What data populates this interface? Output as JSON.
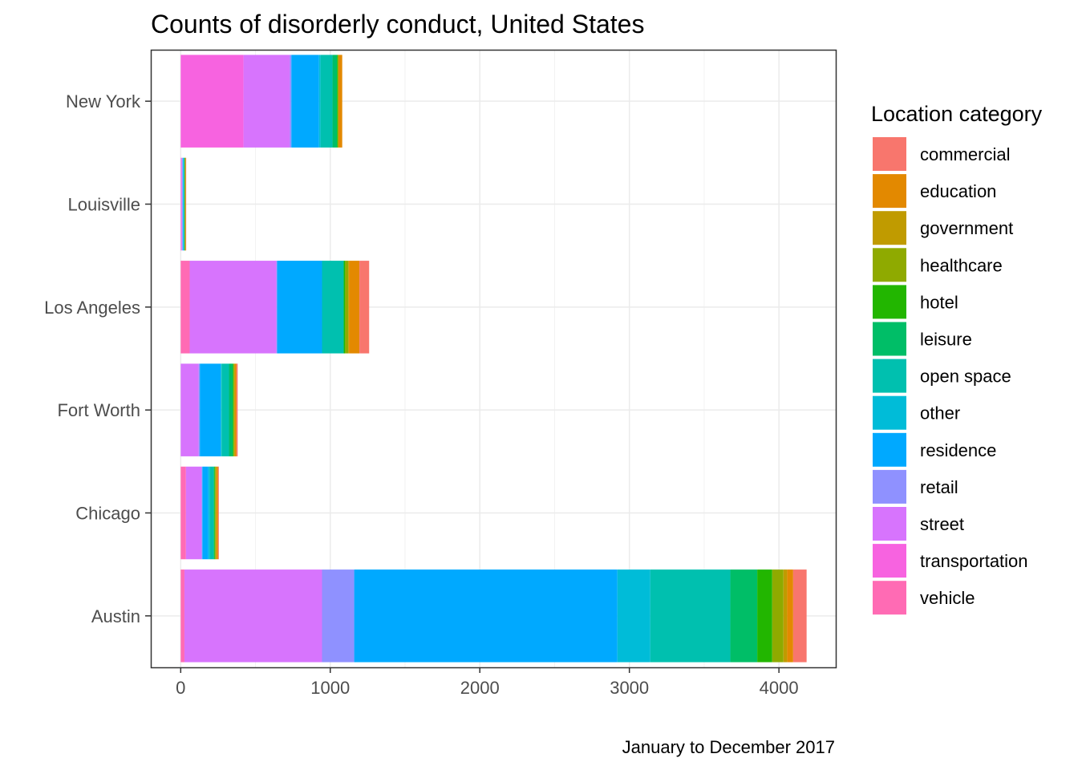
{
  "chart_data": {
    "type": "bar",
    "orientation": "horizontal",
    "stacked": true,
    "title": "Counts of disorderly conduct, United States",
    "caption": "January to December 2017",
    "xlabel": "",
    "ylabel": "",
    "xlim": [
      -200,
      4380
    ],
    "x_ticks": [
      0,
      1000,
      2000,
      3000,
      4000
    ],
    "x_tick_labels": [
      "0",
      "1000",
      "2000",
      "3000",
      "4000"
    ],
    "grid": true,
    "legend_position": "right",
    "legend_title": "Location category",
    "categories": [
      "New York",
      "Louisville",
      "Los Angeles",
      "Fort Worth",
      "Chicago",
      "Austin"
    ],
    "series": [
      {
        "name": "vehicle",
        "color": "#FF6BB4",
        "values": [
          0,
          2,
          60,
          0,
          35,
          25
        ]
      },
      {
        "name": "transportation",
        "color": "#F763E0",
        "values": [
          420,
          3,
          0,
          0,
          0,
          0
        ]
      },
      {
        "name": "street",
        "color": "#D774FD",
        "values": [
          310,
          5,
          580,
          120,
          105,
          920
        ]
      },
      {
        "name": "retail",
        "color": "#8F91FF",
        "values": [
          10,
          3,
          5,
          8,
          5,
          215
        ]
      },
      {
        "name": "residence",
        "color": "#00A9FF",
        "values": [
          185,
          6,
          300,
          140,
          40,
          1760
        ]
      },
      {
        "name": "other",
        "color": "#00BCD8",
        "values": [
          10,
          2,
          0,
          5,
          10,
          220
        ]
      },
      {
        "name": "open space",
        "color": "#00C0AF",
        "values": [
          80,
          3,
          145,
          50,
          25,
          535
        ]
      },
      {
        "name": "leisure",
        "color": "#00BE67",
        "values": [
          30,
          2,
          0,
          25,
          5,
          180
        ]
      },
      {
        "name": "hotel",
        "color": "#22B600",
        "values": [
          5,
          2,
          10,
          5,
          5,
          100
        ]
      },
      {
        "name": "healthcare",
        "color": "#8FAA00",
        "values": [
          5,
          2,
          20,
          5,
          5,
          75
        ]
      },
      {
        "name": "government",
        "color": "#C09B00",
        "values": [
          0,
          2,
          5,
          5,
          5,
          25
        ]
      },
      {
        "name": "education",
        "color": "#E38900",
        "values": [
          25,
          2,
          70,
          10,
          10,
          40
        ]
      },
      {
        "name": "commercial",
        "color": "#F8766D",
        "values": [
          0,
          2,
          65,
          8,
          5,
          90
        ]
      }
    ],
    "legend_order": [
      "commercial",
      "education",
      "government",
      "healthcare",
      "hotel",
      "leisure",
      "open space",
      "other",
      "residence",
      "retail",
      "street",
      "transportation",
      "vehicle"
    ]
  }
}
